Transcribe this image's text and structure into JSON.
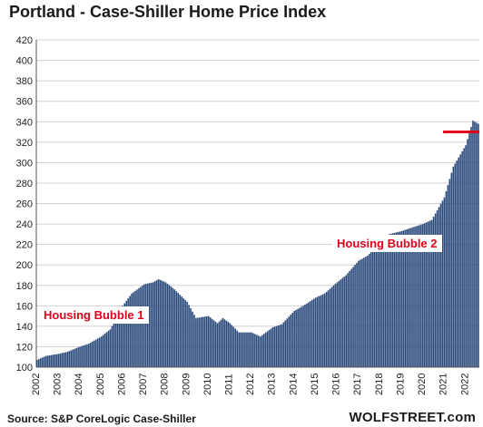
{
  "title": "Portland - Case-Shiller Home Price Index",
  "annotations": {
    "bubble1": "Housing Bubble 1",
    "bubble2": "Housing Bubble 2"
  },
  "footer": {
    "source": "Source: S&P CoreLogic Case-Shiller",
    "brand": "WOLFSTREET.com"
  },
  "colors": {
    "bars": "#2a4a7b",
    "marker": "#e3001b",
    "grid": "#d0d0d0"
  },
  "chart_data": {
    "type": "bar",
    "ylim": [
      100,
      420
    ],
    "yticks": [
      100,
      120,
      140,
      160,
      180,
      200,
      220,
      240,
      260,
      280,
      300,
      320,
      340,
      360,
      380,
      400,
      420
    ],
    "xticks": [
      "2002",
      "2003",
      "2004",
      "2005",
      "2006",
      "2007",
      "2008",
      "2009",
      "2010",
      "2011",
      "2012",
      "2013",
      "2014",
      "2015",
      "2016",
      "2017",
      "2018",
      "2019",
      "2020",
      "2021",
      "2022"
    ],
    "grid": true,
    "start": "2002-01",
    "frequency": "monthly",
    "anchors": [
      [
        "2002-01",
        107
      ],
      [
        "2002-06",
        111
      ],
      [
        "2003-01",
        113
      ],
      [
        "2003-06",
        115
      ],
      [
        "2004-01",
        120
      ],
      [
        "2004-06",
        123
      ],
      [
        "2005-01",
        130
      ],
      [
        "2005-06",
        137
      ],
      [
        "2006-01",
        160
      ],
      [
        "2006-06",
        172
      ],
      [
        "2007-01",
        181
      ],
      [
        "2007-06",
        183
      ],
      [
        "2007-09",
        186
      ],
      [
        "2008-01",
        183
      ],
      [
        "2008-06",
        176
      ],
      [
        "2009-01",
        164
      ],
      [
        "2009-06",
        148
      ],
      [
        "2010-01",
        150
      ],
      [
        "2010-06",
        143
      ],
      [
        "2010-09",
        148
      ],
      [
        "2011-01",
        143
      ],
      [
        "2011-06",
        134
      ],
      [
        "2012-01",
        134
      ],
      [
        "2012-06",
        130
      ],
      [
        "2013-01",
        139
      ],
      [
        "2013-06",
        142
      ],
      [
        "2014-01",
        155
      ],
      [
        "2014-06",
        160
      ],
      [
        "2015-01",
        168
      ],
      [
        "2015-06",
        172
      ],
      [
        "2016-01",
        183
      ],
      [
        "2016-06",
        190
      ],
      [
        "2017-01",
        204
      ],
      [
        "2017-06",
        209
      ],
      [
        "2018-01",
        221
      ],
      [
        "2018-06",
        230
      ],
      [
        "2019-01",
        233
      ],
      [
        "2019-06",
        236
      ],
      [
        "2020-01",
        240
      ],
      [
        "2020-06",
        244
      ],
      [
        "2021-01",
        266
      ],
      [
        "2021-06",
        296
      ],
      [
        "2022-01",
        317
      ],
      [
        "2022-05",
        341
      ],
      [
        "2022-08",
        338
      ]
    ],
    "reference_line": 330
  }
}
